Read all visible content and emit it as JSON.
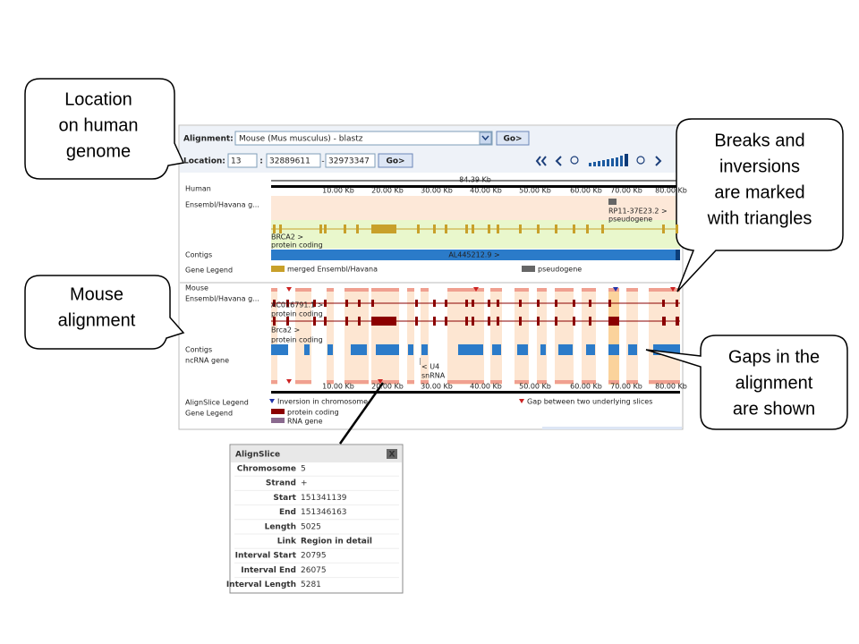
{
  "callouts": {
    "location": [
      "Location",
      "on human",
      "genome"
    ],
    "mouse": [
      "Mouse",
      "alignment"
    ],
    "breaks": [
      "Breaks and",
      "inversions",
      "are marked",
      "with triangles"
    ],
    "gaps": [
      "Gaps in the",
      "alignment",
      "are shown"
    ]
  },
  "controls": {
    "alignment_label": "Alignment:",
    "alignment_value": "Mouse (Mus musculus) - blastz",
    "go": "Go>",
    "location_label": "Location:",
    "chromosome": "13",
    "separator": ":",
    "start": "32889611",
    "dash": "-",
    "end": "32973347"
  },
  "browser": {
    "scale_total": "84.39 Kb",
    "scale_labels": [
      "10.00 Kb",
      "20.00 Kb",
      "30.00 Kb",
      "40.00 Kb",
      "50.00 Kb",
      "60.00 Kb",
      "70.00 Kb",
      "80.00 Kb"
    ],
    "human": {
      "track_labels": [
        "Human",
        "Ensembl/Havana g...",
        "Contigs",
        "Gene Legend"
      ],
      "gene_name": "BRCA2 >",
      "gene_type": "protein coding",
      "pseudo_name": "RP11-37E23.2 >",
      "pseudo_type": "pseudogene",
      "contig": "AL445212.9 >",
      "legend": [
        "merged Ensembl/Havana",
        "pseudogene"
      ]
    },
    "mouse": {
      "track_labels": [
        "Mouse",
        "Ensembl/Havana g...",
        "Contigs",
        "ncRNA gene"
      ],
      "gene1_name": "AC016791.1 >",
      "gene1_type": "protein coding",
      "gene2_name": "Brca2 >",
      "gene2_type": "protein coding",
      "rna_name": "< U4",
      "rna_type": "snRNA"
    },
    "legend": {
      "alignslice_label": "AlignSlice Legend",
      "gene_label": "Gene Legend",
      "inversion": "Inversion in chromosome",
      "gap": "Gap between two underlying slices",
      "protein": "protein coding",
      "rna": "RNA gene"
    }
  },
  "popup": {
    "title": "AlignSlice",
    "close": "X",
    "rows": [
      [
        "Chromosome",
        5
      ],
      [
        "Strand",
        "+"
      ],
      [
        "Start",
        151341139
      ],
      [
        "End",
        151346163
      ],
      [
        "Length",
        5025
      ],
      [
        "Link",
        "Region in detail"
      ],
      [
        "Interval Start",
        20795
      ],
      [
        "Interval End",
        26075
      ],
      [
        "Interval Length",
        5281
      ]
    ]
  }
}
